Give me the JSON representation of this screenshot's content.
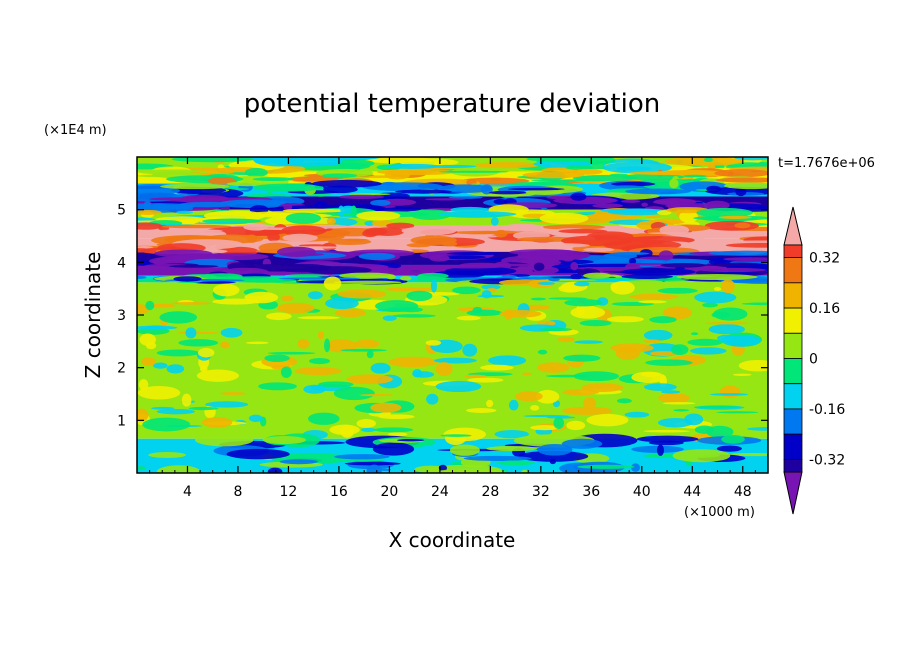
{
  "chart_data": {
    "type": "heatmap",
    "title": "potential temperature deviation",
    "xlabel": "X coordinate",
    "ylabel": "Z coordinate",
    "x_unit": "(×1000 m)",
    "y_unit": "(×1E4 m)",
    "time_label": "t=1.7676e+06",
    "xlim": [
      0,
      50
    ],
    "ylim": [
      0,
      6
    ],
    "x_ticks": [
      4,
      8,
      12,
      16,
      20,
      24,
      28,
      32,
      36,
      40,
      44,
      48
    ],
    "x_tick_labels": [
      "4",
      "8",
      "12",
      "16",
      "20",
      "24",
      "28",
      "32",
      "36",
      "40",
      "44",
      "48"
    ],
    "y_ticks": [
      1,
      2,
      3,
      4,
      5
    ],
    "y_tick_labels": [
      "1",
      "2",
      "3",
      "4",
      "5"
    ],
    "colorbar": {
      "tick_values": [
        0.32,
        0.16,
        0,
        -0.16,
        -0.32
      ],
      "tick_labels": [
        "0.32",
        "0.16",
        "0",
        "-0.16",
        "-0.32"
      ],
      "levels": [
        {
          "min": 0.36,
          "max": null,
          "color": "#f4a8a8"
        },
        {
          "min": 0.32,
          "max": 0.36,
          "color": "#f03c28"
        },
        {
          "min": 0.24,
          "max": 0.32,
          "color": "#f07814"
        },
        {
          "min": 0.16,
          "max": 0.24,
          "color": "#f0b400"
        },
        {
          "min": 0.08,
          "max": 0.16,
          "color": "#f0f000"
        },
        {
          "min": 0.0,
          "max": 0.08,
          "color": "#96e614"
        },
        {
          "min": -0.08,
          "max": 0.0,
          "color": "#00e678"
        },
        {
          "min": -0.16,
          "max": -0.08,
          "color": "#00d2f0"
        },
        {
          "min": -0.24,
          "max": -0.16,
          "color": "#0078f0"
        },
        {
          "min": -0.32,
          "max": -0.24,
          "color": "#0000c8"
        },
        {
          "min": -0.36,
          "max": -0.32,
          "color": "#1e00a0"
        },
        {
          "min": null,
          "max": -0.36,
          "color": "#7814b4"
        }
      ]
    },
    "bands": [
      {
        "z_range": [
          5.72,
          6.0
        ],
        "dominant": "#96e614"
      },
      {
        "z_range": [
          5.5,
          5.72
        ],
        "dominant": "#f0f000"
      },
      {
        "z_range": [
          5.25,
          5.5
        ],
        "dominant": "#00d2f0"
      },
      {
        "z_range": [
          5.0,
          5.25
        ],
        "dominant": "#1e00a0"
      },
      {
        "z_range": [
          4.7,
          5.0
        ],
        "dominant": "#96e614"
      },
      {
        "z_range": [
          4.45,
          4.7
        ],
        "dominant": "#f4a8a8"
      },
      {
        "z_range": [
          4.2,
          4.45
        ],
        "dominant": "#f4a8a8"
      },
      {
        "z_range": [
          3.95,
          4.2
        ],
        "dominant": "#1e00a0"
      },
      {
        "z_range": [
          3.75,
          3.95
        ],
        "dominant": "#7814b4"
      },
      {
        "z_range": [
          3.62,
          3.75
        ],
        "dominant": "#00d2f0"
      },
      {
        "z_range": [
          0.65,
          3.62
        ],
        "dominant": "#96e614"
      },
      {
        "z_range": [
          0.0,
          0.65
        ],
        "dominant": "#00d2f0"
      }
    ]
  }
}
